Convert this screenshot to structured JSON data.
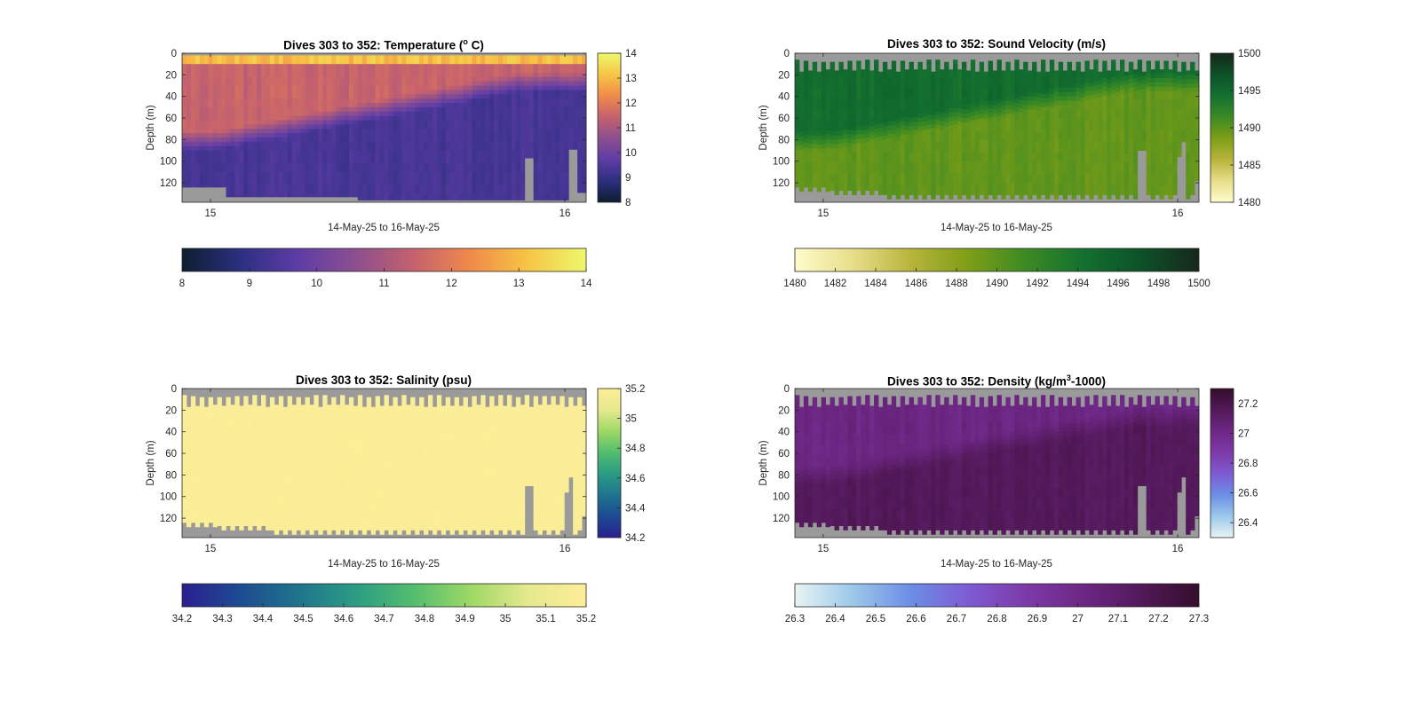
{
  "colors": {
    "no_data": "#9a9a9a",
    "temperature": [
      "#0c1f2f",
      "#2c2f80",
      "#5e3ca6",
      "#8c4f8f",
      "#c4616e",
      "#f08a4b",
      "#f7c544",
      "#edf86d"
    ],
    "sound_velocity": [
      "#fefccb",
      "#e8de8a",
      "#b8b43c",
      "#7f9e16",
      "#3b8a24",
      "#13702f",
      "#0c5228",
      "#18271a"
    ],
    "salinity": [
      "#2a1f8f",
      "#1d4b92",
      "#1f748e",
      "#2b9c84",
      "#52bd6e",
      "#9ed865",
      "#e6e98e",
      "#fdee98"
    ],
    "density": [
      "#e8f4f4",
      "#9cc8ea",
      "#6c8ee6",
      "#7e5bd2",
      "#7d3aa8",
      "#6d2784",
      "#521959",
      "#340d2c"
    ]
  },
  "chart_data": [
    {
      "type": "heatmap",
      "title_text": "Dives 303 to 352: Temperature (",
      "title_sup": "o",
      "title_end": " C)",
      "xlabel": "14-May-25 to 16-May-25",
      "ylabel": "Depth (m)",
      "yticks": [
        "0",
        "20",
        "40",
        "60",
        "80",
        "100",
        "120"
      ],
      "xticks": [
        "15",
        "16"
      ],
      "ylim": [
        0,
        138
      ],
      "clim": [
        8,
        14
      ],
      "vcolorbar_ticks": [
        "14",
        "13",
        "12",
        "11",
        "10",
        "9",
        "8"
      ],
      "hcolorbar_ticks": [
        "8",
        "9",
        "10",
        "11",
        "12",
        "13",
        "14"
      ],
      "colormap": "temperature",
      "field": "temperature"
    },
    {
      "type": "heatmap",
      "title_text": "Dives 303 to 352: Sound Velocity (m/s)",
      "xlabel": "14-May-25 to 16-May-25",
      "ylabel": "Depth (m)",
      "yticks": [
        "0",
        "20",
        "40",
        "60",
        "80",
        "100",
        "120"
      ],
      "xticks": [
        "15",
        "16"
      ],
      "ylim": [
        0,
        138
      ],
      "clim": [
        1480,
        1500
      ],
      "vcolorbar_ticks": [
        "1500",
        "1495",
        "1490",
        "1485",
        "1480"
      ],
      "hcolorbar_ticks": [
        "1480",
        "1482",
        "1484",
        "1486",
        "1488",
        "1490",
        "1492",
        "1494",
        "1496",
        "1498",
        "1500"
      ],
      "colormap": "sound_velocity",
      "field": "sound_velocity"
    },
    {
      "type": "heatmap",
      "title_text": "Dives 303 to 352: Salinity (psu)",
      "xlabel": "14-May-25 to 16-May-25",
      "ylabel": "Depth (m)",
      "yticks": [
        "0",
        "20",
        "40",
        "60",
        "80",
        "100",
        "120"
      ],
      "xticks": [
        "15",
        "16"
      ],
      "ylim": [
        0,
        138
      ],
      "clim": [
        34.2,
        35.2
      ],
      "vcolorbar_ticks": [
        "35.2",
        "35",
        "34.8",
        "34.6",
        "34.4",
        "34.2"
      ],
      "hcolorbar_ticks": [
        "34.2",
        "34.3",
        "34.4",
        "34.5",
        "34.6",
        "34.7",
        "34.8",
        "34.9",
        "35",
        "35.1",
        "35.2"
      ],
      "colormap": "salinity",
      "field": "salinity"
    },
    {
      "type": "heatmap",
      "title_text": "Dives 303 to 352: Density (kg/m",
      "title_sup": "3",
      "title_end": "-1000)",
      "xlabel": "14-May-25 to 16-May-25",
      "ylabel": "Depth (m)",
      "yticks": [
        "0",
        "20",
        "40",
        "60",
        "80",
        "100",
        "120"
      ],
      "xticks": [
        "15",
        "16"
      ],
      "ylim": [
        0,
        138
      ],
      "clim": [
        26.3,
        27.3
      ],
      "vcolorbar_ticks": [
        "27.2",
        "27",
        "26.8",
        "26.6",
        "26.4"
      ],
      "hcolorbar_ticks": [
        "26.3",
        "26.4",
        "26.5",
        "26.6",
        "26.7",
        "26.8",
        "26.9",
        "27",
        "27.1",
        "27.2",
        "27.3"
      ],
      "colormap": "density",
      "field": "density"
    }
  ]
}
